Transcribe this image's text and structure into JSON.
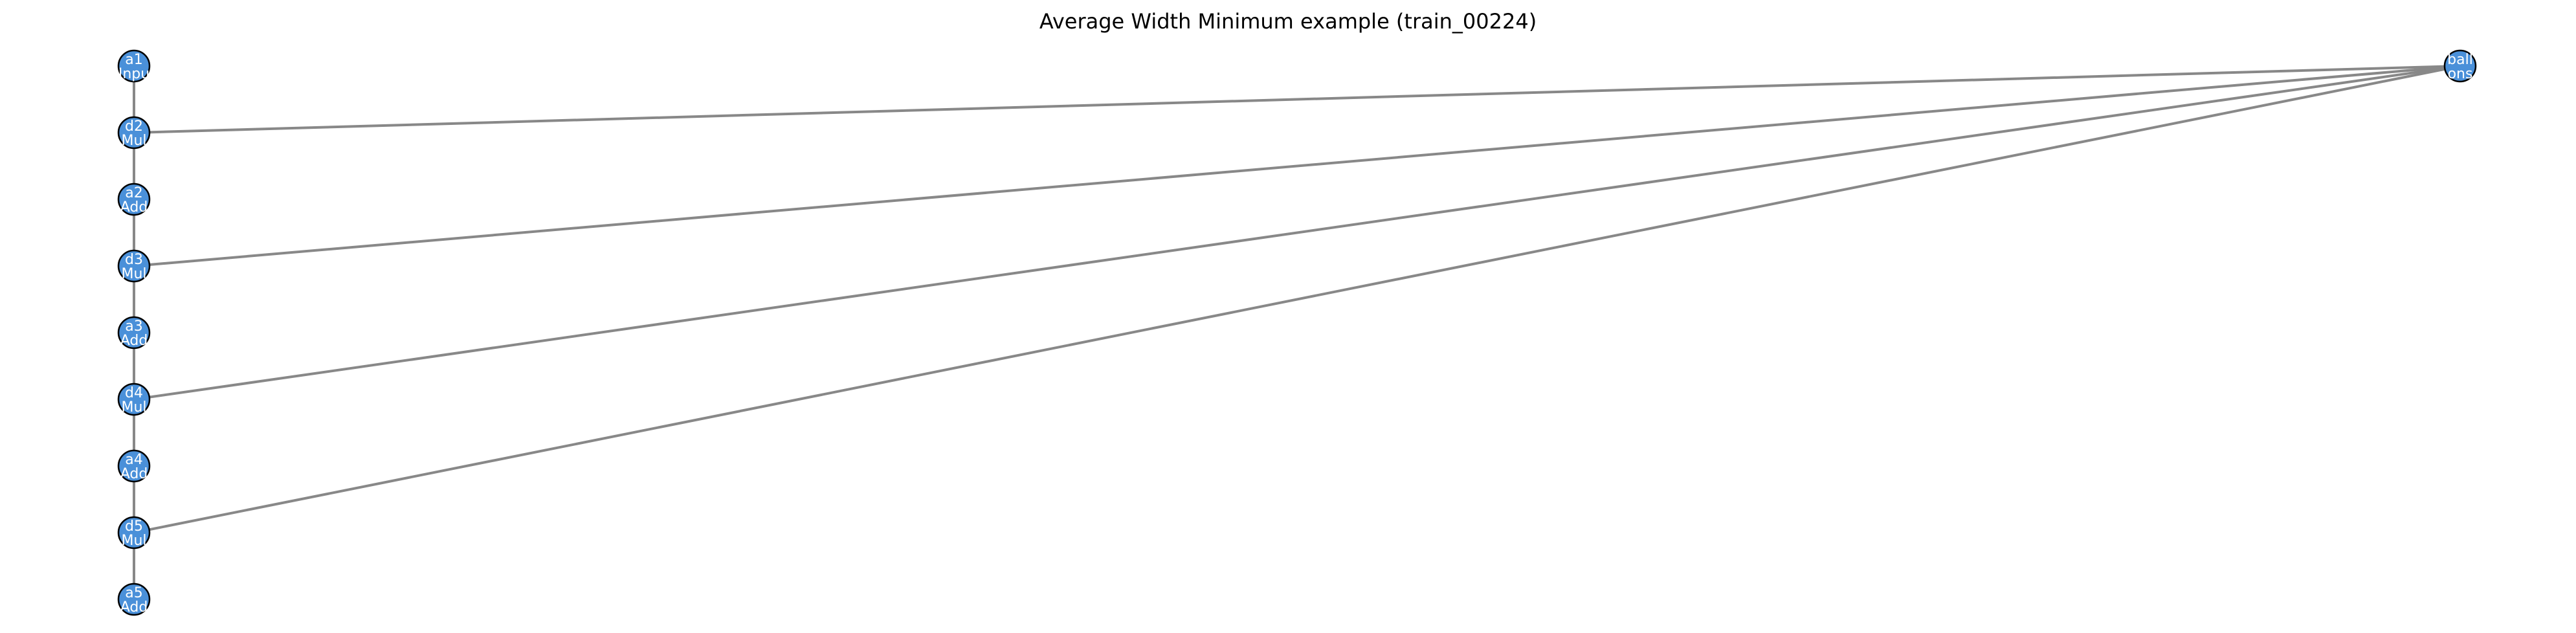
{
  "title": "Average Width Minimum example (train_00224)",
  "colors": {
    "node_fill": "#4a90d9",
    "node_stroke": "#000000",
    "edge": "#888888",
    "label": "#ffffff"
  },
  "nodes": [
    {
      "id": "a1",
      "line1": "a1",
      "line2": "Inpu"
    },
    {
      "id": "d2",
      "line1": "d2",
      "line2": "Mul"
    },
    {
      "id": "a2",
      "line1": "a2",
      "line2": "Add"
    },
    {
      "id": "d3",
      "line1": "d3",
      "line2": "Mul"
    },
    {
      "id": "a3",
      "line1": "a3",
      "line2": "Add"
    },
    {
      "id": "d4",
      "line1": "d4",
      "line2": "Mul"
    },
    {
      "id": "a4",
      "line1": "a4",
      "line2": "Add"
    },
    {
      "id": "d5",
      "line1": "d5",
      "line2": "Mul"
    },
    {
      "id": "a5",
      "line1": "a5",
      "line2": "Add"
    },
    {
      "id": "const",
      "line1": "ball",
      "line2": "ons"
    }
  ],
  "edges": [
    [
      "a1",
      "d2"
    ],
    [
      "d2",
      "a2"
    ],
    [
      "a2",
      "d3"
    ],
    [
      "d3",
      "a3"
    ],
    [
      "a3",
      "d4"
    ],
    [
      "d4",
      "a4"
    ],
    [
      "a4",
      "d5"
    ],
    [
      "d5",
      "a5"
    ],
    [
      "const",
      "d2"
    ],
    [
      "const",
      "d3"
    ],
    [
      "const",
      "d4"
    ],
    [
      "const",
      "d5"
    ]
  ]
}
